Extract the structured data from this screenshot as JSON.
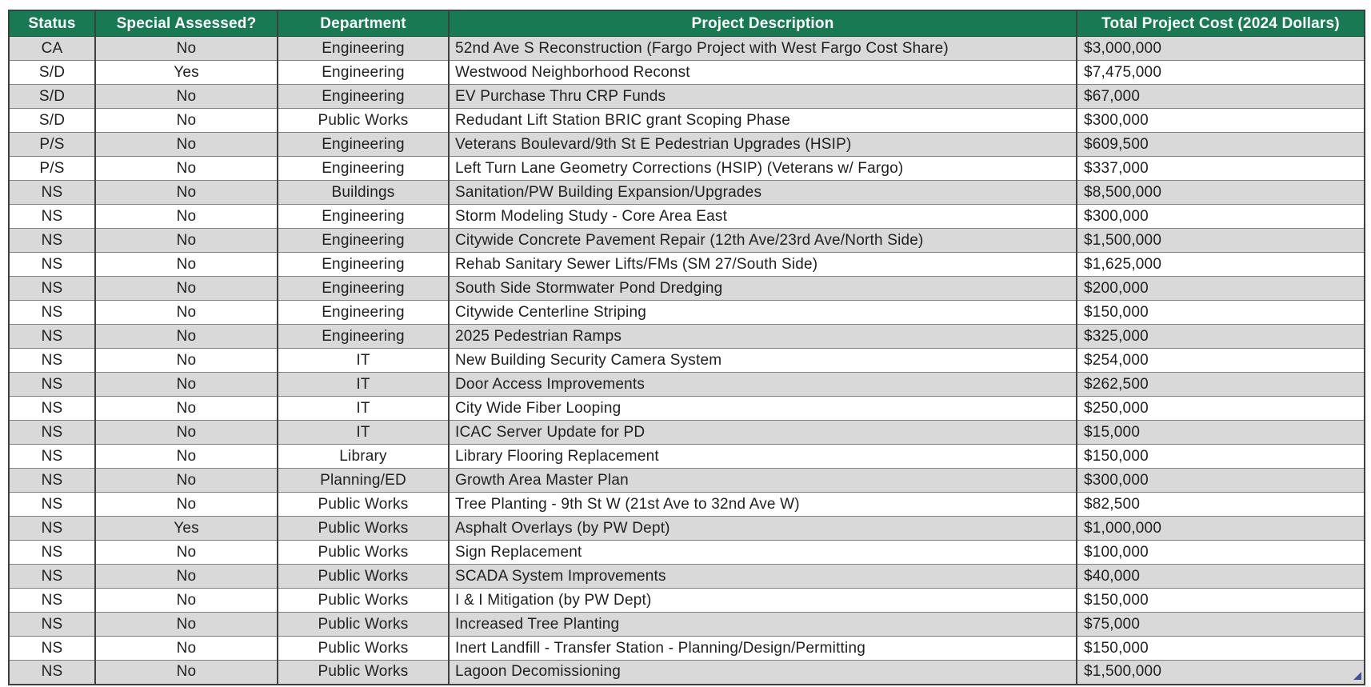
{
  "table": {
    "columns": [
      {
        "label": "Status"
      },
      {
        "label": "Special Assessed?"
      },
      {
        "label": "Department"
      },
      {
        "label": "Project Description"
      },
      {
        "label": "Total Project Cost (2024 Dollars)"
      }
    ],
    "rows": [
      [
        "CA",
        "No",
        "Engineering",
        "52nd Ave S Reconstruction (Fargo Project with West Fargo Cost Share)",
        "$3,000,000"
      ],
      [
        "S/D",
        "Yes",
        "Engineering",
        "Westwood Neighborhood Reconst",
        "$7,475,000"
      ],
      [
        "S/D",
        "No",
        "Engineering",
        "EV Purchase Thru CRP Funds",
        "$67,000"
      ],
      [
        "S/D",
        "No",
        "Public Works",
        "Redudant Lift Station BRIC grant Scoping Phase",
        "$300,000"
      ],
      [
        "P/S",
        "No",
        "Engineering",
        "Veterans Boulevard/9th St E Pedestrian Upgrades (HSIP)",
        "$609,500"
      ],
      [
        "P/S",
        "No",
        "Engineering",
        "Left Turn Lane Geometry Corrections (HSIP) (Veterans w/ Fargo)",
        "$337,000"
      ],
      [
        "NS",
        "No",
        "Buildings",
        "Sanitation/PW Building Expansion/Upgrades",
        "$8,500,000"
      ],
      [
        "NS",
        "No",
        "Engineering",
        "Storm Modeling Study - Core Area East",
        "$300,000"
      ],
      [
        "NS",
        "No",
        "Engineering",
        "Citywide Concrete Pavement Repair (12th Ave/23rd Ave/North Side)",
        "$1,500,000"
      ],
      [
        "NS",
        "No",
        "Engineering",
        "Rehab Sanitary Sewer Lifts/FMs (SM 27/South Side)",
        "$1,625,000"
      ],
      [
        "NS",
        "No",
        "Engineering",
        "South Side Stormwater Pond Dredging",
        "$200,000"
      ],
      [
        "NS",
        "No",
        "Engineering",
        "Citywide Centerline Striping",
        "$150,000"
      ],
      [
        "NS",
        "No",
        "Engineering",
        "2025 Pedestrian Ramps",
        "$325,000"
      ],
      [
        "NS",
        "No",
        "IT",
        "New Building Security Camera System",
        "$254,000"
      ],
      [
        "NS",
        "No",
        "IT",
        "Door Access Improvements",
        "$262,500"
      ],
      [
        "NS",
        "No",
        "IT",
        "City Wide Fiber Looping",
        "$250,000"
      ],
      [
        "NS",
        "No",
        "IT",
        "ICAC  Server Update for PD",
        "$15,000"
      ],
      [
        "NS",
        "No",
        "Library",
        "Library Flooring Replacement",
        "$150,000"
      ],
      [
        "NS",
        "No",
        "Planning/ED",
        "Growth Area Master Plan",
        "$300,000"
      ],
      [
        "NS",
        "No",
        "Public Works",
        "Tree Planting - 9th St W (21st Ave to 32nd Ave W)",
        "$82,500"
      ],
      [
        "NS",
        "Yes",
        "Public Works",
        "Asphalt Overlays (by PW Dept)",
        "$1,000,000"
      ],
      [
        "NS",
        "No",
        "Public Works",
        "Sign Replacement",
        "$100,000"
      ],
      [
        "NS",
        "No",
        "Public Works",
        "SCADA System Improvements",
        "$40,000"
      ],
      [
        "NS",
        "No",
        "Public Works",
        "I & I Mitigation (by PW Dept)",
        "$150,000"
      ],
      [
        "NS",
        "No",
        "Public Works",
        "Increased Tree Planting",
        "$75,000"
      ],
      [
        "NS",
        "No",
        "Public Works",
        "Inert Landfill - Transfer Station - Planning/Design/Permitting",
        "$150,000"
      ],
      [
        "NS",
        "No",
        "Public Works",
        "Lagoon Decomissioning",
        "$1,500,000"
      ]
    ]
  },
  "colors": {
    "header_bg": "#187a52",
    "header_text": "#ffffff",
    "shaded_row_bg": "#d9d9d9",
    "plain_row_bg": "#ffffff",
    "border_dark": "#3f3f3f",
    "border_light": "#808080",
    "body_text": "#1f1f1f",
    "fill_handle": "#3c52a0"
  }
}
